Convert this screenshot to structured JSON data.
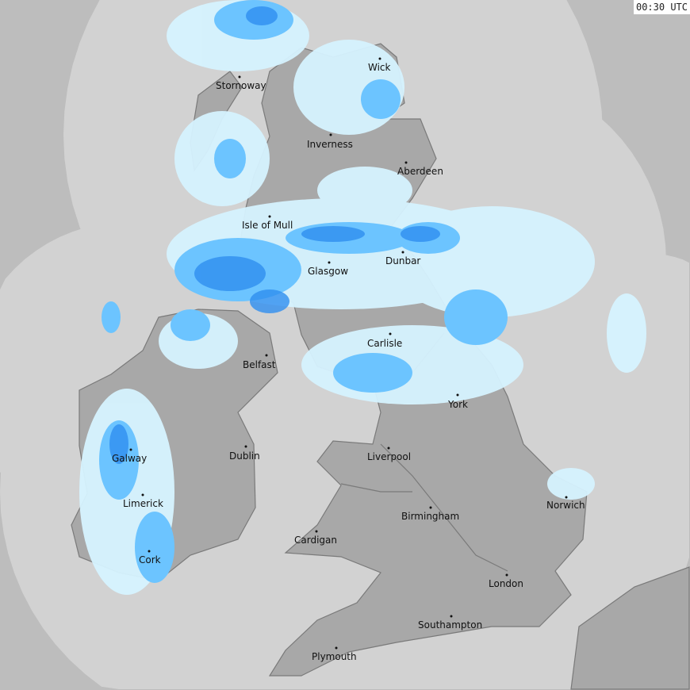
{
  "timestamp": "00:30 UTC",
  "colors": {
    "outside_coverage": "#bdbdbd",
    "radar_coverage": "#d2d2d2",
    "land": "#a8a8a8",
    "border": "#7a7a7a",
    "rain_light": "#d6f3ff",
    "rain_moderate": "#6cc4ff",
    "rain_heavy": "#2f8ff0"
  },
  "cities": [
    {
      "name": "Stornoway"
    },
    {
      "name": "Wick"
    },
    {
      "name": "Inverness"
    },
    {
      "name": "Aberdeen"
    },
    {
      "name": "Isle of Mull"
    },
    {
      "name": "Glasgow"
    },
    {
      "name": "Dunbar"
    },
    {
      "name": "Carlisle"
    },
    {
      "name": "Belfast"
    },
    {
      "name": "York"
    },
    {
      "name": "Galway"
    },
    {
      "name": "Dublin"
    },
    {
      "name": "Liverpool"
    },
    {
      "name": "Limerick"
    },
    {
      "name": "Birmingham"
    },
    {
      "name": "Norwich"
    },
    {
      "name": "Cardigan"
    },
    {
      "name": "Cork"
    },
    {
      "name": "London"
    },
    {
      "name": "Southampton"
    },
    {
      "name": "Plymouth"
    }
  ]
}
